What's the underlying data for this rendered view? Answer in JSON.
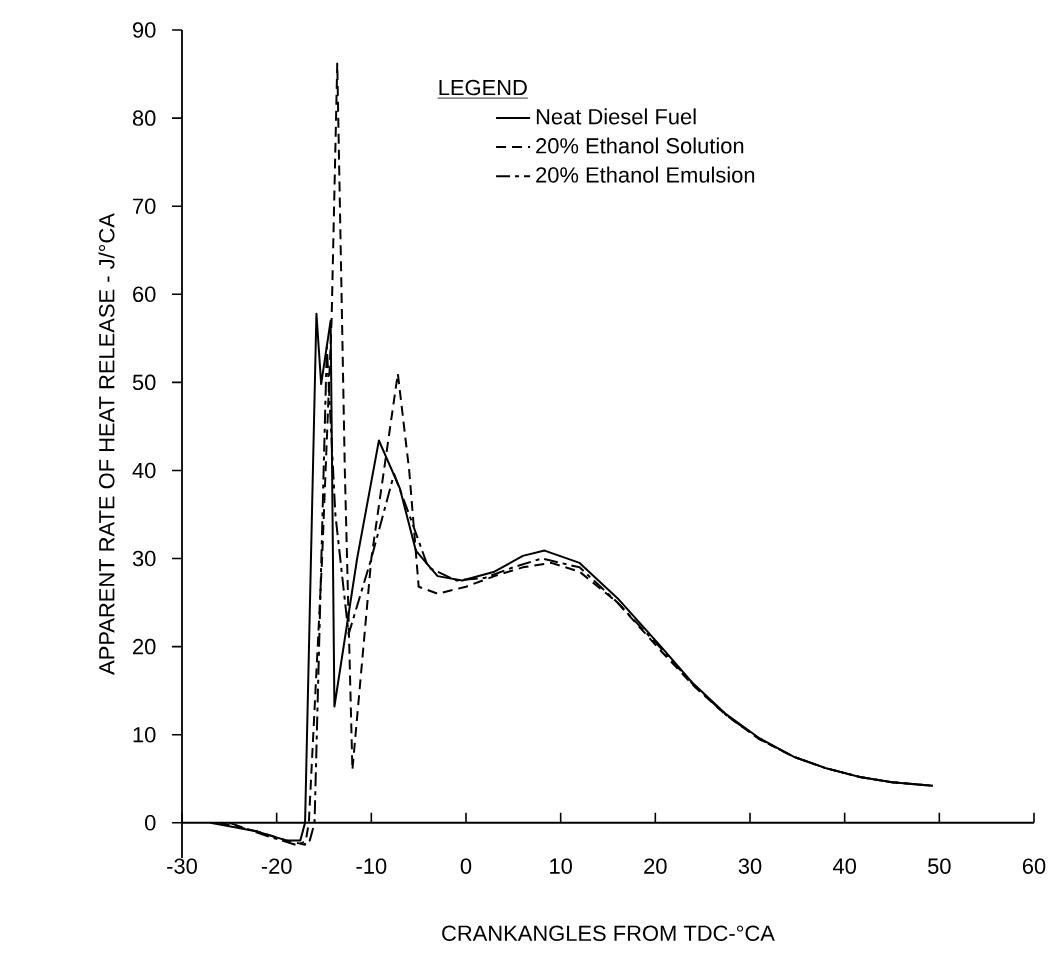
{
  "chart_data": {
    "type": "line",
    "xlabel": "CRANKANGLES FROM TDC-°CA",
    "ylabel": "APPARENT RATE OF HEAT RELEASE - J/°CA",
    "legend_title": "LEGEND",
    "legend": "top right",
    "marker": "none",
    "grid": false,
    "xlim": [
      -30,
      60
    ],
    "ylim": [
      -4,
      90
    ],
    "xticks": [
      -30,
      -20,
      -10,
      0,
      10,
      20,
      30,
      40,
      50,
      60
    ],
    "yticks": [
      0,
      10,
      20,
      30,
      40,
      50,
      60,
      70,
      80,
      90
    ],
    "series": [
      {
        "name": "Neat Diesel Fuel",
        "color": "#000000",
        "line_style": "solid",
        "x": [
          -27,
          -22,
          -19,
          -17.5,
          -17,
          -15.8,
          -15.3,
          -14.3,
          -13.9,
          -11.5,
          -9.2,
          -7,
          -5.3,
          -3,
          -0.4,
          3,
          6,
          8.3,
          12,
          16,
          20.6,
          24,
          27.5,
          31,
          34.6,
          38,
          41.6,
          45,
          49.3
        ],
        "values": [
          0,
          -1,
          -2,
          -2,
          0,
          57.8,
          49.8,
          57,
          13.2,
          30,
          43.4,
          38,
          30.9,
          28,
          27.5,
          28.5,
          30.3,
          30.9,
          29.5,
          25.5,
          20,
          15.8,
          12.3,
          9.6,
          7.5,
          6.2,
          5.2,
          4.6,
          4.2
        ]
      },
      {
        "name": "20% Ethanol Solution",
        "color": "#000000",
        "line_style": "dashed",
        "x": [
          -26,
          -22,
          -19,
          -17,
          -16.6,
          -15.2,
          -14.2,
          -13.6,
          -12.8,
          -12,
          -10,
          -7.2,
          -6,
          -5,
          -3,
          0,
          3,
          6,
          9,
          12,
          16,
          20.6,
          24,
          27.5,
          31,
          34.6,
          38,
          41.6,
          45,
          49.3
        ],
        "values": [
          0,
          -1,
          -2,
          -2.5,
          0,
          30,
          57,
          86.2,
          40,
          6,
          30,
          51,
          40,
          26.8,
          26,
          26.8,
          28,
          29,
          29.5,
          28.5,
          25,
          19.5,
          15.6,
          12.2,
          9.5,
          7.5,
          6.2,
          5.2,
          4.6,
          4.2
        ]
      },
      {
        "name": "20% Ethanol Emulsion",
        "color": "#000000",
        "line_style": "dashdot",
        "x": [
          -25,
          -21,
          -18,
          -16.5,
          -16,
          -14.7,
          -13.8,
          -12.4,
          -10,
          -7.6,
          -6,
          -4,
          -1,
          2,
          5,
          8,
          12,
          16,
          20.6,
          24,
          27.5,
          31,
          34.6,
          38,
          41.6,
          45,
          49.3
        ],
        "values": [
          0,
          -1.5,
          -2.5,
          -2,
          0,
          54,
          35,
          21.4,
          30,
          39.6,
          35,
          29,
          27.5,
          27.8,
          29,
          30,
          29,
          25,
          19.8,
          15.7,
          12.2,
          9.5,
          7.5,
          6.2,
          5.2,
          4.6,
          4.2
        ]
      }
    ]
  }
}
